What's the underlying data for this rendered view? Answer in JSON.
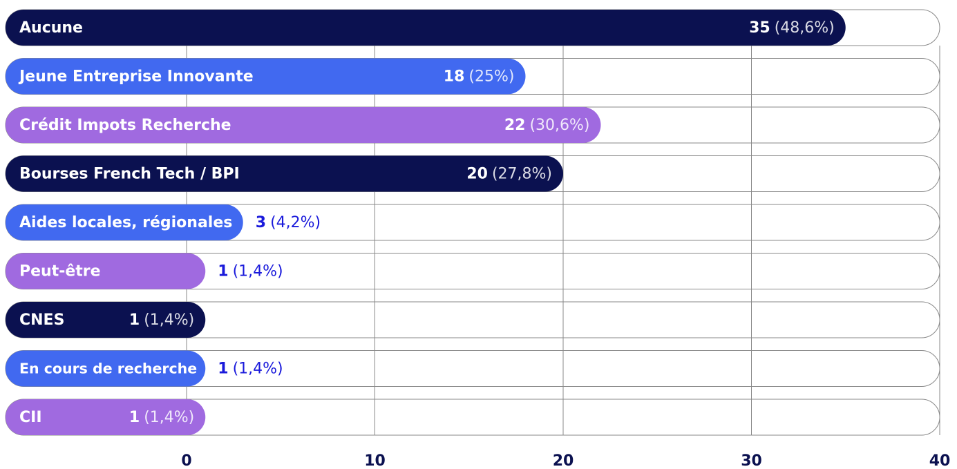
{
  "chart_data": {
    "type": "bar",
    "orientation": "horizontal",
    "categories": [
      "Aucune",
      "Jeune Entreprise Innovante",
      "Crédit Impots Recherche",
      "Bourses French Tech / BPI",
      "Aides locales, régionales",
      "Peut-être",
      "CNES",
      "En cours de recherche",
      "CII"
    ],
    "values": [
      35,
      18,
      22,
      20,
      3,
      1,
      1,
      1,
      1
    ],
    "share_labels": [
      "(48,6%)",
      "(25%)",
      "(30,6%)",
      "(27,8%)",
      "(4,2%)",
      "(1,4%)",
      "(1,4%)",
      "(1,4%)",
      "(1,4%)"
    ],
    "colors": [
      "#0b1150",
      "#4169f0",
      "#a06ae0",
      "#0b1150",
      "#4169f0",
      "#a06ae0",
      "#0b1150",
      "#4169f0",
      "#a06ae0"
    ],
    "xlim": [
      0,
      40
    ],
    "xticks": [
      0,
      10,
      20,
      30,
      40
    ],
    "grid": true
  }
}
